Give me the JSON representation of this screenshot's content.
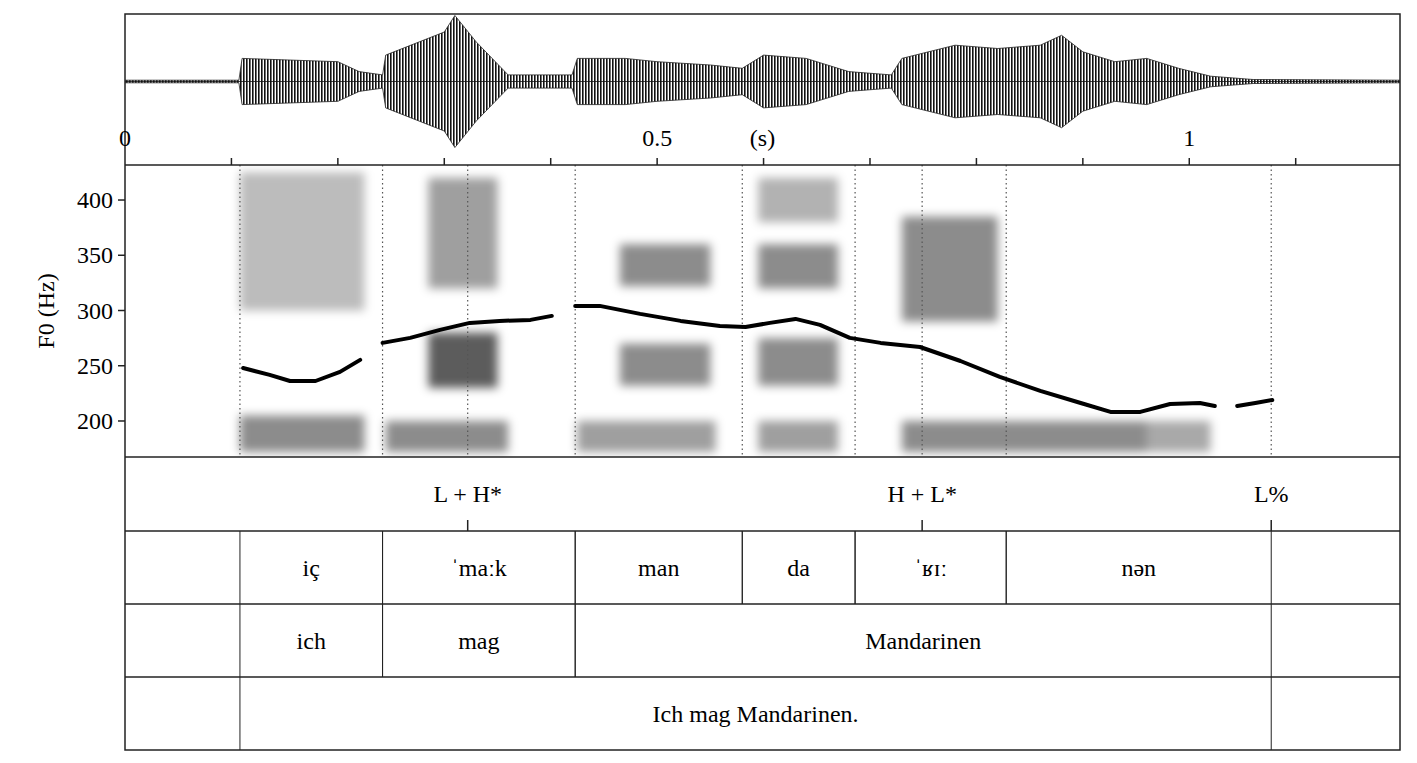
{
  "chart_data": {
    "type": "line",
    "x_label": "(s)",
    "y_label": "F0 (Hz)",
    "xlim": [
      0,
      1.198
    ],
    "xticks": [
      0,
      0.5,
      1
    ],
    "xminor_ticks": [
      0.1,
      0.2,
      0.3,
      0.4,
      0.5,
      0.6,
      0.7,
      0.8,
      0.9,
      1.0,
      1.1
    ],
    "ylim": [
      167.4,
      431.7
    ],
    "yticks": [
      200,
      250,
      300,
      350,
      400
    ],
    "x": [
      0.111,
      0.136,
      0.155,
      0.179,
      0.202,
      0.221,
      0.232,
      0.242,
      0.268,
      0.296,
      0.324,
      0.352,
      0.381,
      0.401,
      0.412,
      0.423,
      0.446,
      0.484,
      0.522,
      0.559,
      0.583,
      0.606,
      0.63,
      0.653,
      0.681,
      0.71,
      0.747,
      0.785,
      0.822,
      0.86,
      0.898,
      0.926,
      0.954,
      0.982,
      1.01,
      1.024,
      1.035,
      1.045,
      1.062,
      1.078
    ],
    "series": [
      {
        "color": "#000000",
        "values": [
          248,
          241.7,
          236.2,
          236.2,
          244.4,
          255.3,
          null,
          270.7,
          275.2,
          282.4,
          288.8,
          290.6,
          291.5,
          295.1,
          null,
          304.2,
          304.2,
          296.9,
          290.6,
          286.1,
          285.1,
          288.8,
          292.4,
          287,
          275.2,
          270.7,
          267,
          254.3,
          239.9,
          227.2,
          216.3,
          208.2,
          208.2,
          215.4,
          216.3,
          213.6,
          null,
          213.6,
          216.3,
          219
        ]
      }
    ],
    "waveform": {
      "x": [
        0,
        0.107,
        0.11,
        0.2,
        0.22,
        0.242,
        0.245,
        0.3,
        0.31,
        0.33,
        0.36,
        0.42,
        0.425,
        0.47,
        0.5,
        0.55,
        0.58,
        0.6,
        0.64,
        0.68,
        0.72,
        0.73,
        0.78,
        0.82,
        0.86,
        0.88,
        0.9,
        0.93,
        0.96,
        0.99,
        1.02,
        1.06,
        1.198
      ],
      "amplitude": [
        0.02,
        0.02,
        0.35,
        0.3,
        0.15,
        0.1,
        0.4,
        0.75,
        1.0,
        0.6,
        0.1,
        0.1,
        0.35,
        0.35,
        0.3,
        0.25,
        0.2,
        0.4,
        0.35,
        0.15,
        0.1,
        0.35,
        0.55,
        0.5,
        0.55,
        0.7,
        0.45,
        0.3,
        0.35,
        0.2,
        0.08,
        0.03,
        0.02
      ]
    },
    "spectrogram": [
      {
        "t0": 0.108,
        "t1": 0.225,
        "f0": 172,
        "f1": 205,
        "level": 0.6
      },
      {
        "t0": 0.108,
        "t1": 0.225,
        "f0": 300,
        "f1": 425,
        "level": 0.35
      },
      {
        "t0": 0.245,
        "t1": 0.36,
        "f0": 172,
        "f1": 200,
        "level": 0.6
      },
      {
        "t0": 0.285,
        "t1": 0.35,
        "f0": 230,
        "f1": 280,
        "level": 0.85
      },
      {
        "t0": 0.285,
        "t1": 0.35,
        "f0": 320,
        "f1": 420,
        "level": 0.5
      },
      {
        "t0": 0.425,
        "t1": 0.555,
        "f0": 172,
        "f1": 200,
        "level": 0.5
      },
      {
        "t0": 0.465,
        "t1": 0.55,
        "f0": 232,
        "f1": 270,
        "level": 0.6
      },
      {
        "t0": 0.465,
        "t1": 0.55,
        "f0": 322,
        "f1": 360,
        "level": 0.6
      },
      {
        "t0": 0.595,
        "t1": 0.67,
        "f0": 172,
        "f1": 200,
        "level": 0.5
      },
      {
        "t0": 0.595,
        "t1": 0.67,
        "f0": 232,
        "f1": 275,
        "level": 0.6
      },
      {
        "t0": 0.595,
        "t1": 0.67,
        "f0": 320,
        "f1": 360,
        "level": 0.6
      },
      {
        "t0": 0.595,
        "t1": 0.67,
        "f0": 380,
        "f1": 420,
        "level": 0.4
      },
      {
        "t0": 0.73,
        "t1": 0.82,
        "f0": 290,
        "f1": 385,
        "level": 0.6
      },
      {
        "t0": 0.73,
        "t1": 0.96,
        "f0": 172,
        "f1": 200,
        "level": 0.6
      },
      {
        "t0": 0.96,
        "t1": 1.02,
        "f0": 172,
        "f1": 200,
        "level": 0.45
      }
    ],
    "tiers": [
      {
        "points": [
          {
            "time": 0.322,
            "label": "L + H*"
          },
          {
            "time": 0.749,
            "label": "H + L*"
          },
          {
            "time": 1.077,
            "label": "L%"
          }
        ]
      },
      {
        "intervals": [
          {
            "start": 0.108,
            "end": 0.242,
            "label": "iç"
          },
          {
            "start": 0.242,
            "end": 0.423,
            "label": "ˈmaːk"
          },
          {
            "start": 0.423,
            "end": 0.58,
            "label": "man"
          },
          {
            "start": 0.58,
            "end": 0.686,
            "label": "da"
          },
          {
            "start": 0.686,
            "end": 0.828,
            "label": "ˈʁɪː"
          },
          {
            "start": 0.828,
            "end": 1.077,
            "label": "nən"
          }
        ]
      },
      {
        "intervals": [
          {
            "start": 0.108,
            "end": 0.242,
            "label": "ich"
          },
          {
            "start": 0.242,
            "end": 0.423,
            "label": "mag"
          },
          {
            "start": 0.423,
            "end": 1.077,
            "label": "Mandarinen"
          }
        ]
      },
      {
        "intervals": [
          {
            "start": 0.108,
            "end": 1.077,
            "label": "Ich mag Mandarinen."
          }
        ]
      }
    ]
  }
}
